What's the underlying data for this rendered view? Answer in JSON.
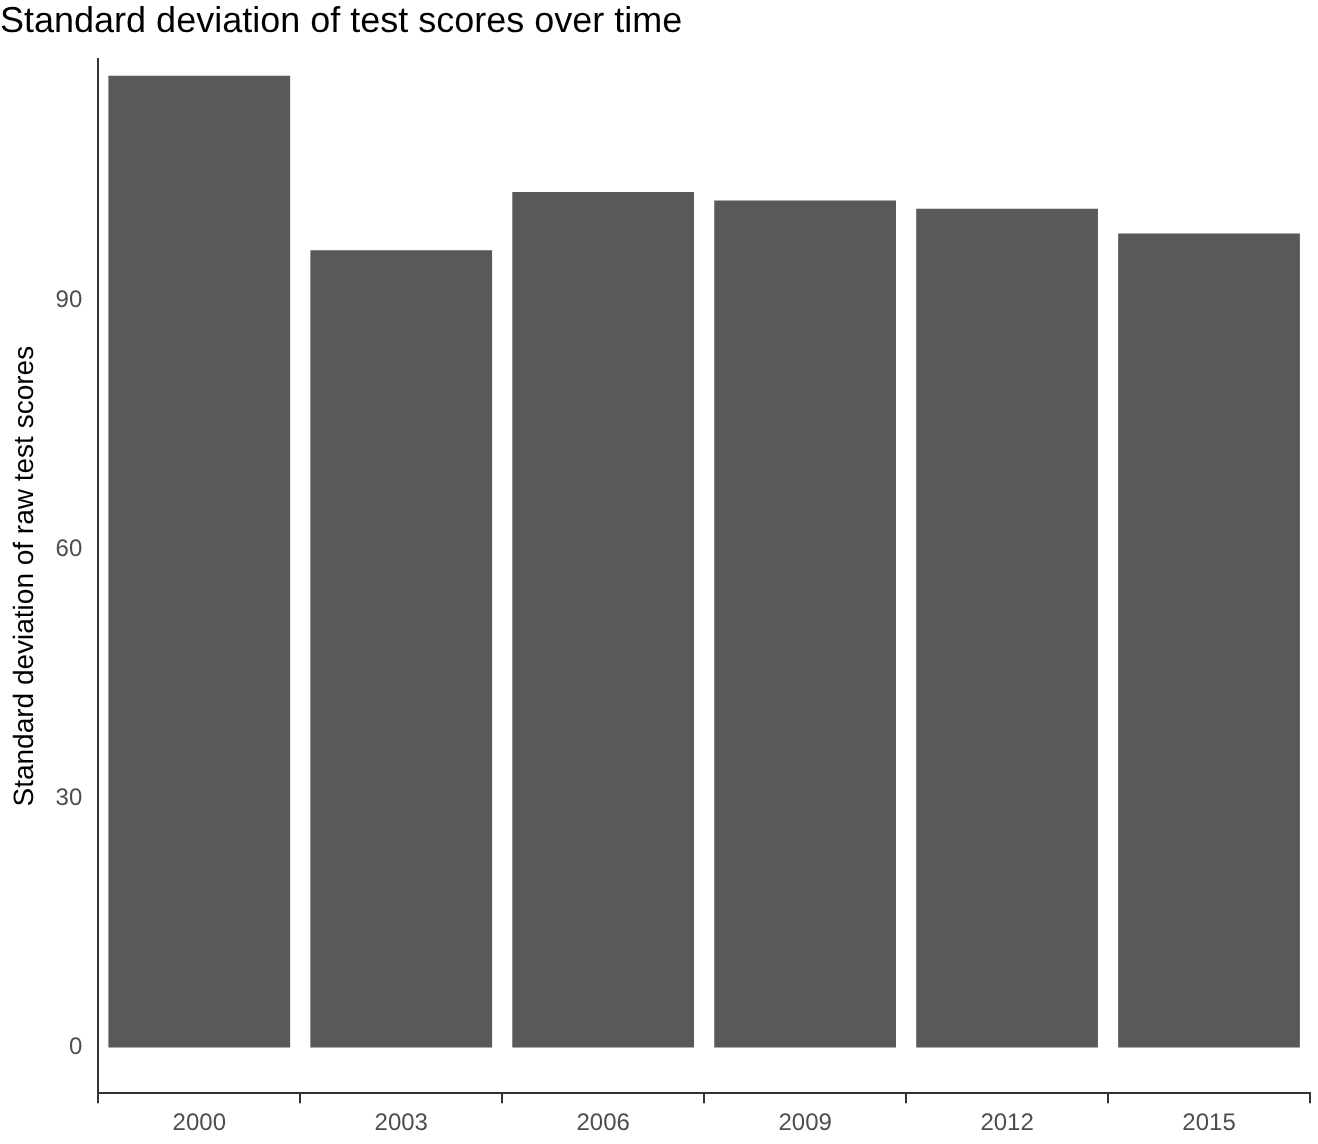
{
  "chart_data": {
    "type": "bar",
    "title": "Standard deviation of test scores over time",
    "ylabel": "Standard deviation of raw test scores",
    "categories": [
      "2000",
      "2003",
      "2006",
      "2009",
      "2012",
      "2015"
    ],
    "values": [
      117,
      96,
      103,
      102,
      101,
      98
    ],
    "color": "#595959",
    "ylim": [
      -5.5,
      119
    ],
    "yticks": [
      0,
      30,
      60,
      90
    ],
    "grid": false,
    "legend": false
  }
}
